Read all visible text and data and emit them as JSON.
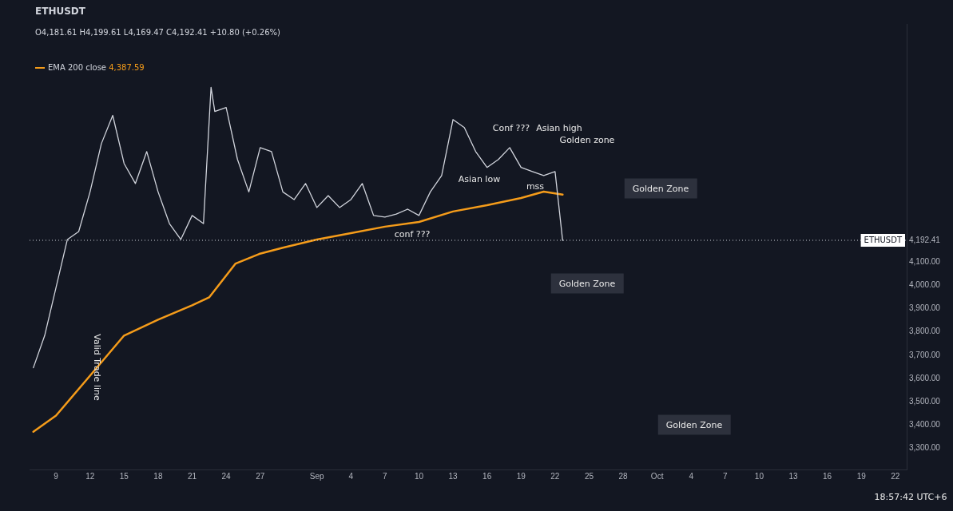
{
  "chart_data": {
    "type": "line",
    "title": "ETHUSDT",
    "subtitle": "O4,181.61 H4,199.61 L4,169.47 C4,192.41 +10.80 (+0.26%)",
    "series": [
      {
        "color": "#d1d4dc",
        "x": [
          "--08-07",
          "--08-08",
          "--08-09",
          "--08-10",
          "--08-11",
          "--08-12",
          "--08-13",
          "--08-14",
          "--08-15",
          "--08-16",
          "--08-17",
          "--08-18",
          "--08-19",
          "--08-20",
          "--08-21",
          "--08-22",
          "--08-22T16:00",
          "--08-23",
          "--08-24",
          "--08-25",
          "--08-26",
          "--08-27",
          "--08-28",
          "--08-29",
          "--08-30",
          "--08-31",
          "--09-01",
          "--09-02",
          "--09-03",
          "--09-04",
          "--09-05",
          "--09-06",
          "--09-07",
          "--09-08",
          "--09-09",
          "--09-10",
          "--09-11",
          "--09-12",
          "--09-13",
          "--09-14",
          "--09-15",
          "--09-16",
          "--09-17",
          "--09-18",
          "--09-19",
          "--09-20",
          "--09-21",
          "--09-22",
          "--09-22T16:00"
        ],
        "values": [
          3646,
          3784,
          3990,
          4196,
          4230,
          4400,
          4607,
          4728,
          4522,
          4436,
          4573,
          4400,
          4264,
          4196,
          4299,
          4264,
          4848,
          4745,
          4762,
          4539,
          4400,
          4590,
          4573,
          4400,
          4367,
          4436,
          4333,
          4384,
          4333,
          4367,
          4436,
          4299,
          4292,
          4305,
          4326,
          4299,
          4400,
          4470,
          4710,
          4676,
          4573,
          4505,
          4539,
          4590,
          4505,
          4487,
          4470,
          4487,
          4192
        ]
      },
      {
        "name": "EMA 200 close",
        "color": "#f59c1a",
        "x": [
          "--08-07",
          "--08-09",
          "--08-12",
          "--08-15",
          "--08-18",
          "--08-21",
          "--08-22T12:00",
          "--08-24T20:00",
          "--08-26T22:00",
          "--08-29",
          "--09-01",
          "--09-04",
          "--09-07",
          "--09-10",
          "--09-13",
          "--09-16",
          "--09-19",
          "--09-21",
          "--09-22T16:00"
        ],
        "values": [
          3372,
          3441,
          3612,
          3784,
          3852,
          3914,
          3948,
          4093,
          4134,
          4161,
          4196,
          4223,
          4251,
          4271,
          4316,
          4343,
          4374,
          4401,
          4388
        ]
      }
    ],
    "xlim": [
      "--08-06T16:00",
      "--10-23"
    ],
    "xticks": [
      {
        "value": "--08-09",
        "label": "9"
      },
      {
        "value": "--08-12",
        "label": "12"
      },
      {
        "value": "--08-15",
        "label": "15"
      },
      {
        "value": "--08-18",
        "label": "18"
      },
      {
        "value": "--08-21",
        "label": "21"
      },
      {
        "value": "--08-24",
        "label": "24"
      },
      {
        "value": "--08-27",
        "label": "27"
      },
      {
        "value": "--09-01",
        "label": "Sep"
      },
      {
        "value": "--09-04",
        "label": "4"
      },
      {
        "value": "--09-07",
        "label": "7"
      },
      {
        "value": "--09-10",
        "label": "10"
      },
      {
        "value": "--09-13",
        "label": "13"
      },
      {
        "value": "--09-16",
        "label": "16"
      },
      {
        "value": "--09-19",
        "label": "19"
      },
      {
        "value": "--09-22",
        "label": "22"
      },
      {
        "value": "--09-25",
        "label": "25"
      },
      {
        "value": "--09-28",
        "label": "28"
      },
      {
        "value": "--10-01",
        "label": "Oct"
      },
      {
        "value": "--10-04",
        "label": "4"
      },
      {
        "value": "--10-07",
        "label": "7"
      },
      {
        "value": "--10-10",
        "label": "10"
      },
      {
        "value": "--10-13",
        "label": "13"
      },
      {
        "value": "--10-16",
        "label": "16"
      },
      {
        "value": "--10-19",
        "label": "19"
      },
      {
        "value": "--10-22",
        "label": "22"
      }
    ],
    "ylim": [
      3210,
      5120
    ],
    "yticks": [
      {
        "value": 3300,
        "label": "3,300.00"
      },
      {
        "value": 3400,
        "label": "3,400.00"
      },
      {
        "value": 3500,
        "label": "3,500.00"
      },
      {
        "value": 3600,
        "label": "3,600.00"
      },
      {
        "value": 3700,
        "label": "3,700.00"
      },
      {
        "value": 3800,
        "label": "3,800.00"
      },
      {
        "value": 3900,
        "label": "3,900.00"
      },
      {
        "value": 4000,
        "label": "4,000.00"
      },
      {
        "value": 4100,
        "label": "4,100.00"
      },
      {
        "value": 4192.41,
        "label": "4,192.41"
      }
    ],
    "ref_lines": [
      {
        "axis": "y",
        "value": 4192.41,
        "label": "ETHUSDT",
        "line_style": "dotted",
        "color": "#d1d4dc"
      }
    ],
    "legend": "top left",
    "marker": "none",
    "line_style": "solid",
    "annotations": [
      "Golden Zone",
      "Golden Zone",
      "Golden Zone",
      "Golden zone",
      "conf ???",
      "Conf ???",
      "Asian low",
      "Asian high",
      "mss",
      "Valid Trade line",
      "18:57:42 UTC+6",
      "4,387.59"
    ]
  }
}
